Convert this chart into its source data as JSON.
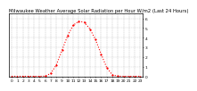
{
  "title": "Milwaukee Weather Average Solar Radiation per Hour W/m2 (Last 24 Hours)",
  "hours": [
    0,
    1,
    2,
    3,
    4,
    5,
    6,
    7,
    8,
    9,
    10,
    11,
    12,
    13,
    14,
    15,
    16,
    17,
    18,
    19,
    20,
    21,
    22,
    23
  ],
  "values": [
    0,
    0,
    0,
    0,
    0,
    0,
    2,
    30,
    120,
    270,
    420,
    530,
    570,
    560,
    490,
    380,
    230,
    90,
    15,
    1,
    0,
    0,
    0,
    0
  ],
  "line_color": "#ff0000",
  "bg_color": "#ffffff",
  "plot_bg_color": "#ffffff",
  "grid_color": "#aaaaaa",
  "text_color": "#000000",
  "border_color": "#000000",
  "ylim": [
    0,
    650
  ],
  "ytick_values": [
    0,
    100,
    200,
    300,
    400,
    500,
    600
  ],
  "ytick_labels": [
    "0",
    "1",
    "2",
    "3",
    "4",
    "5",
    "6"
  ],
  "title_fontsize": 3.8,
  "tick_fontsize": 3.2,
  "line_width": 0.8,
  "marker_size": 1.2
}
